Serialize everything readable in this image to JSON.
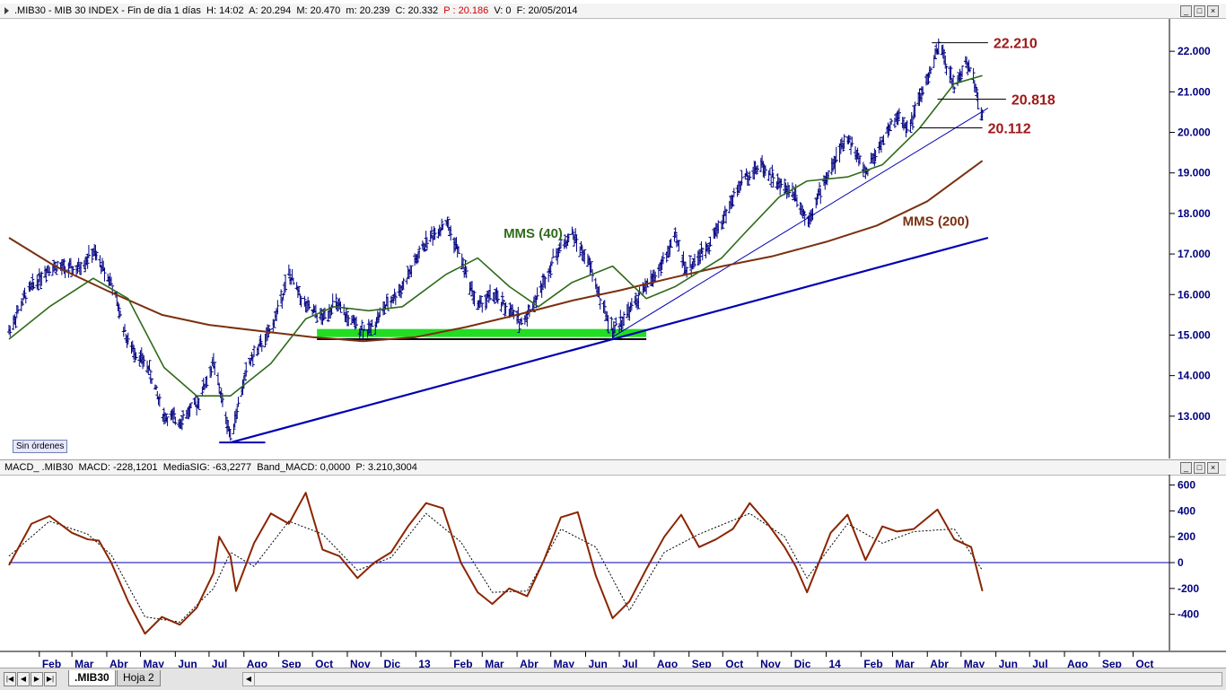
{
  "main_header": {
    "symbol": ".MIB30",
    "description": "MIB 30 INDEX",
    "period": "Fin de día 1 días",
    "time": "H: 14:02",
    "open": "A: 20.294",
    "high": "M: 20.470",
    "low": "m: 20.239",
    "close": "C: 20.332",
    "price": "P : 20.186",
    "volume": "V: 0",
    "date": "F: 20/05/2014"
  },
  "macd_header": {
    "name": "MACD_ .MIB30",
    "macd": "MACD: -228,1201",
    "signal": "MediaSIG: -63,2277",
    "band": "Band_MACD: 0,0000",
    "p": "P: 3.210,3004"
  },
  "window_buttons": [
    "_",
    "□",
    "×"
  ],
  "sin_ordenes": "Sin órdenes",
  "tabs": [
    ".MIB30",
    "Hoja 2"
  ],
  "colors": {
    "bars": "#000080",
    "mms40": "#2e6b1a",
    "mms200": "#7a3010",
    "trend": "#0000b0",
    "support_band": "#22dd22",
    "macd": "#8b2500",
    "level_label": "#a01818",
    "axis_text": "#000080"
  },
  "chart_data": [
    {
      "type": "ohlc",
      "ylim": [
        12000,
        22800
      ],
      "yticks": [
        13000,
        14000,
        15000,
        16000,
        17000,
        18000,
        19000,
        20000,
        21000,
        22000
      ],
      "ytick_labels": [
        "13.000",
        "14.000",
        "15.000",
        "16.000",
        "17.000",
        "18.000",
        "19.000",
        "20.000",
        "21.000",
        "22.000"
      ],
      "x_range": [
        "2012-01-05",
        "2014-10-31"
      ],
      "month_ticks": [
        {
          "date": "2012-02-01",
          "label": "Feb"
        },
        {
          "date": "2012-03-01",
          "label": "Mar"
        },
        {
          "date": "2012-04-01",
          "label": "Abr"
        },
        {
          "date": "2012-05-01",
          "label": "May"
        },
        {
          "date": "2012-06-01",
          "label": "Jun"
        },
        {
          "date": "2012-07-01",
          "label": "Jul"
        },
        {
          "date": "2012-08-01",
          "label": "Ago"
        },
        {
          "date": "2012-09-01",
          "label": "Sep"
        },
        {
          "date": "2012-10-01",
          "label": "Oct"
        },
        {
          "date": "2012-11-01",
          "label": "Nov"
        },
        {
          "date": "2012-12-01",
          "label": "Dic"
        },
        {
          "date": "2013-01-01",
          "label": "13"
        },
        {
          "date": "2013-02-01",
          "label": "Feb"
        },
        {
          "date": "2013-03-01",
          "label": "Mar"
        },
        {
          "date": "2013-04-01",
          "label": "Abr"
        },
        {
          "date": "2013-05-01",
          "label": "May"
        },
        {
          "date": "2013-06-01",
          "label": "Jun"
        },
        {
          "date": "2013-07-01",
          "label": "Jul"
        },
        {
          "date": "2013-08-01",
          "label": "Ago"
        },
        {
          "date": "2013-09-01",
          "label": "Sep"
        },
        {
          "date": "2013-10-01",
          "label": "Oct"
        },
        {
          "date": "2013-11-01",
          "label": "Nov"
        },
        {
          "date": "2013-12-01",
          "label": "Dic"
        },
        {
          "date": "2014-01-01",
          "label": "14"
        },
        {
          "date": "2014-02-01",
          "label": "Feb"
        },
        {
          "date": "2014-03-01",
          "label": "Mar"
        },
        {
          "date": "2014-04-01",
          "label": "Abr"
        },
        {
          "date": "2014-05-01",
          "label": "May"
        },
        {
          "date": "2014-06-01",
          "label": "Jun"
        },
        {
          "date": "2014-07-01",
          "label": "Jul"
        },
        {
          "date": "2014-08-01",
          "label": "Ago"
        },
        {
          "date": "2014-09-01",
          "label": "Sep"
        },
        {
          "date": "2014-10-01",
          "label": "Oct"
        }
      ],
      "price_path": [
        [
          "2012-01-05",
          15100
        ],
        [
          "2012-01-20",
          16000
        ],
        [
          "2012-02-10",
          16700
        ],
        [
          "2012-03-05",
          16600
        ],
        [
          "2012-03-20",
          17050
        ],
        [
          "2012-04-05",
          16300
        ],
        [
          "2012-04-20",
          14800
        ],
        [
          "2012-05-08",
          14200
        ],
        [
          "2012-05-22",
          13000
        ],
        [
          "2012-06-05",
          12900
        ],
        [
          "2012-06-20",
          13300
        ],
        [
          "2012-07-05",
          14300
        ],
        [
          "2012-07-20",
          12500
        ],
        [
          "2012-08-05",
          14300
        ],
        [
          "2012-08-25",
          15100
        ],
        [
          "2012-09-10",
          16500
        ],
        [
          "2012-09-25",
          15700
        ],
        [
          "2012-10-10",
          15400
        ],
        [
          "2012-10-20",
          15800
        ],
        [
          "2012-11-05",
          15300
        ],
        [
          "2012-11-20",
          15100
        ],
        [
          "2012-12-05",
          15700
        ],
        [
          "2012-12-20",
          16200
        ],
        [
          "2013-01-10",
          17300
        ],
        [
          "2013-01-28",
          17800
        ],
        [
          "2013-02-10",
          16900
        ],
        [
          "2013-02-25",
          15700
        ],
        [
          "2013-03-10",
          16000
        ],
        [
          "2013-03-25",
          15600
        ],
        [
          "2013-04-05",
          15300
        ],
        [
          "2013-04-20",
          16000
        ],
        [
          "2013-05-05",
          17000
        ],
        [
          "2013-05-20",
          17500
        ],
        [
          "2013-06-05",
          16700
        ],
        [
          "2013-06-15",
          15800
        ],
        [
          "2013-06-25",
          15100
        ],
        [
          "2013-07-10",
          15600
        ],
        [
          "2013-07-25",
          16200
        ],
        [
          "2013-08-05",
          16600
        ],
        [
          "2013-08-20",
          17400
        ],
        [
          "2013-08-30",
          16600
        ],
        [
          "2013-09-15",
          17100
        ],
        [
          "2013-09-30",
          17800
        ],
        [
          "2013-10-20",
          18900
        ],
        [
          "2013-11-05",
          19200
        ],
        [
          "2013-11-20",
          18700
        ],
        [
          "2013-12-05",
          18500
        ],
        [
          "2013-12-15",
          17800
        ],
        [
          "2013-12-31",
          18800
        ],
        [
          "2014-01-20",
          19900
        ],
        [
          "2014-02-05",
          19000
        ],
        [
          "2014-02-20",
          19800
        ],
        [
          "2014-03-05",
          20400
        ],
        [
          "2014-03-15",
          20100
        ],
        [
          "2014-03-25",
          20800
        ],
        [
          "2014-04-05",
          21600
        ],
        [
          "2014-04-12",
          22150
        ],
        [
          "2014-04-25",
          21100
        ],
        [
          "2014-05-05",
          21700
        ],
        [
          "2014-05-12",
          21400
        ],
        [
          "2014-05-20",
          20300
        ]
      ],
      "mms40": [
        [
          "2012-01-05",
          14900
        ],
        [
          "2012-02-10",
          15700
        ],
        [
          "2012-03-20",
          16400
        ],
        [
          "2012-04-20",
          15900
        ],
        [
          "2012-05-22",
          14200
        ],
        [
          "2012-06-20",
          13500
        ],
        [
          "2012-07-20",
          13500
        ],
        [
          "2012-08-25",
          14300
        ],
        [
          "2012-09-25",
          15400
        ],
        [
          "2012-10-20",
          15700
        ],
        [
          "2012-11-20",
          15600
        ],
        [
          "2012-12-20",
          15700
        ],
        [
          "2013-01-28",
          16500
        ],
        [
          "2013-02-25",
          16900
        ],
        [
          "2013-03-25",
          16200
        ],
        [
          "2013-04-20",
          15700
        ],
        [
          "2013-05-20",
          16300
        ],
        [
          "2013-06-25",
          16700
        ],
        [
          "2013-07-25",
          15900
        ],
        [
          "2013-08-20",
          16200
        ],
        [
          "2013-09-30",
          16900
        ],
        [
          "2013-10-20",
          17500
        ],
        [
          "2013-11-20",
          18400
        ],
        [
          "2013-12-15",
          18800
        ],
        [
          "2014-01-20",
          18900
        ],
        [
          "2014-02-20",
          19200
        ],
        [
          "2014-03-25",
          20100
        ],
        [
          "2014-04-25",
          21200
        ],
        [
          "2014-05-20",
          21400
        ]
      ],
      "mms200": [
        [
          "2012-01-05",
          17400
        ],
        [
          "2012-02-15",
          16700
        ],
        [
          "2012-04-01",
          16100
        ],
        [
          "2012-05-20",
          15500
        ],
        [
          "2012-07-01",
          15250
        ],
        [
          "2012-08-15",
          15100
        ],
        [
          "2012-10-01",
          14950
        ],
        [
          "2012-11-15",
          14850
        ],
        [
          "2013-01-01",
          14950
        ],
        [
          "2013-02-15",
          15200
        ],
        [
          "2013-04-01",
          15500
        ],
        [
          "2013-05-20",
          15850
        ],
        [
          "2013-07-01",
          16100
        ],
        [
          "2013-08-15",
          16400
        ],
        [
          "2013-10-01",
          16700
        ],
        [
          "2013-11-15",
          16950
        ],
        [
          "2014-01-01",
          17300
        ],
        [
          "2014-02-15",
          17700
        ],
        [
          "2014-04-01",
          18300
        ],
        [
          "2014-05-20",
          19300
        ]
      ],
      "levels": [
        {
          "value": 22210,
          "label": "22.210",
          "from": "2014-04-05",
          "to": "2014-05-25"
        },
        {
          "value": 20818,
          "label": "20.818",
          "from": "2014-04-10",
          "to": "2014-06-10"
        },
        {
          "value": 20112,
          "label": "20.112",
          "from": "2014-03-25",
          "to": "2014-05-20"
        }
      ],
      "support": {
        "value": 14900,
        "from": "2012-10-05",
        "to": "2013-07-25"
      },
      "support_band": {
        "from": "2012-10-05",
        "to": "2013-07-25",
        "low": 14950,
        "high": 15150
      },
      "low_marker": {
        "value": 12350,
        "from": "2012-07-10",
        "to": "2012-08-20"
      },
      "trendlines": [
        {
          "x1": "2012-07-20",
          "y1": 12350,
          "x2": "2014-05-25",
          "y2": 17400,
          "width": 2.2
        },
        {
          "x1": "2013-06-25",
          "y1": 14950,
          "x2": "2014-05-25",
          "y2": 20600,
          "width": 1
        }
      ],
      "annotations": [
        {
          "text": "MMS (40)",
          "date": "2013-03-20",
          "value": 17400,
          "color": "#2e6b1a"
        },
        {
          "text": "MMS (200)",
          "date": "2014-03-10",
          "value": 17700,
          "color": "#7a3010"
        }
      ]
    },
    {
      "type": "line",
      "title": "MACD",
      "ylim": [
        -680,
        680
      ],
      "yticks": [
        600,
        400,
        200,
        0,
        -200,
        -400
      ],
      "ytick_labels": [
        "600",
        "400",
        "200",
        "0",
        "-200",
        "-400"
      ],
      "macd_path": [
        [
          "2012-01-05",
          -20
        ],
        [
          "2012-01-25",
          300
        ],
        [
          "2012-02-10",
          360
        ],
        [
          "2012-03-01",
          230
        ],
        [
          "2012-03-15",
          180
        ],
        [
          "2012-03-25",
          170
        ],
        [
          "2012-04-05",
          0
        ],
        [
          "2012-04-20",
          -300
        ],
        [
          "2012-05-05",
          -550
        ],
        [
          "2012-05-20",
          -420
        ],
        [
          "2012-06-05",
          -480
        ],
        [
          "2012-06-20",
          -350
        ],
        [
          "2012-07-05",
          -80
        ],
        [
          "2012-07-10",
          200
        ],
        [
          "2012-07-20",
          50
        ],
        [
          "2012-07-25",
          -220
        ],
        [
          "2012-08-10",
          150
        ],
        [
          "2012-08-25",
          380
        ],
        [
          "2012-09-10",
          300
        ],
        [
          "2012-09-25",
          540
        ],
        [
          "2012-10-10",
          100
        ],
        [
          "2012-10-25",
          50
        ],
        [
          "2012-11-10",
          -120
        ],
        [
          "2012-11-25",
          0
        ],
        [
          "2012-12-10",
          80
        ],
        [
          "2012-12-25",
          280
        ],
        [
          "2013-01-10",
          460
        ],
        [
          "2013-01-25",
          420
        ],
        [
          "2013-02-10",
          0
        ],
        [
          "2013-02-25",
          -230
        ],
        [
          "2013-03-10",
          -320
        ],
        [
          "2013-03-25",
          -200
        ],
        [
          "2013-04-10",
          -260
        ],
        [
          "2013-04-25",
          20
        ],
        [
          "2013-05-10",
          350
        ],
        [
          "2013-05-25",
          390
        ],
        [
          "2013-06-10",
          -100
        ],
        [
          "2013-06-25",
          -430
        ],
        [
          "2013-07-10",
          -300
        ],
        [
          "2013-07-25",
          -50
        ],
        [
          "2013-08-10",
          200
        ],
        [
          "2013-08-25",
          370
        ],
        [
          "2013-09-10",
          120
        ],
        [
          "2013-09-25",
          180
        ],
        [
          "2013-10-10",
          260
        ],
        [
          "2013-10-25",
          460
        ],
        [
          "2013-11-10",
          300
        ],
        [
          "2013-11-25",
          120
        ],
        [
          "2013-12-05",
          -30
        ],
        [
          "2013-12-15",
          -230
        ],
        [
          "2014-01-05",
          230
        ],
        [
          "2014-01-20",
          370
        ],
        [
          "2014-02-05",
          20
        ],
        [
          "2014-02-20",
          280
        ],
        [
          "2014-03-05",
          240
        ],
        [
          "2014-03-20",
          260
        ],
        [
          "2014-04-10",
          410
        ],
        [
          "2014-04-25",
          180
        ],
        [
          "2014-05-10",
          120
        ],
        [
          "2014-05-20",
          -220
        ]
      ],
      "signal_path": [
        [
          "2012-01-05",
          50
        ],
        [
          "2012-02-10",
          320
        ],
        [
          "2012-03-15",
          220
        ],
        [
          "2012-04-05",
          60
        ],
        [
          "2012-05-05",
          -420
        ],
        [
          "2012-06-05",
          -460
        ],
        [
          "2012-07-05",
          -200
        ],
        [
          "2012-07-20",
          80
        ],
        [
          "2012-08-10",
          -30
        ],
        [
          "2012-09-10",
          320
        ],
        [
          "2012-10-10",
          220
        ],
        [
          "2012-11-10",
          -60
        ],
        [
          "2012-12-10",
          40
        ],
        [
          "2013-01-10",
          380
        ],
        [
          "2013-02-10",
          160
        ],
        [
          "2013-03-10",
          -230
        ],
        [
          "2013-04-10",
          -220
        ],
        [
          "2013-05-10",
          260
        ],
        [
          "2013-06-10",
          120
        ],
        [
          "2013-07-10",
          -370
        ],
        [
          "2013-08-10",
          80
        ],
        [
          "2013-09-10",
          220
        ],
        [
          "2013-10-25",
          380
        ],
        [
          "2013-11-25",
          200
        ],
        [
          "2013-12-15",
          -120
        ],
        [
          "2014-01-20",
          300
        ],
        [
          "2014-02-20",
          150
        ],
        [
          "2014-03-20",
          240
        ],
        [
          "2014-04-25",
          260
        ],
        [
          "2014-05-20",
          -60
        ]
      ]
    }
  ]
}
